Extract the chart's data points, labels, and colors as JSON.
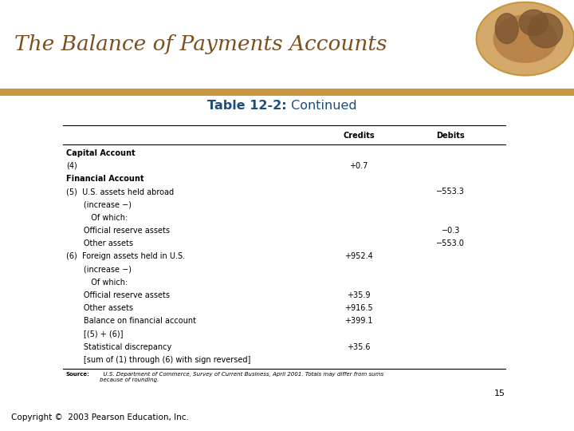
{
  "title": "The Balance of Payments Accounts",
  "subtitle_bold": "Table 12-2:",
  "subtitle_normal": " Continued",
  "header_credits": "Credits",
  "header_debits": "Debits",
  "bg_color": "#FFFFFF",
  "header_bar_color": "#C8963E",
  "title_color": "#7B4F1E",
  "subtitle_color": "#1F4E79",
  "page_number": "15",
  "copyright": "Copyright ©  2003 Pearson Education, Inc.",
  "source_bold": "Source:",
  "source_rest": "  U.S. Department of Commerce, Survey of Current Business, April 2001. Totals may differ from sums\nbecause of rounding.",
  "rows": [
    {
      "label": "Capital Account",
      "indent": 0,
      "credits": "",
      "debits": "",
      "bold": true
    },
    {
      "label": "(4)",
      "indent": 0,
      "credits": "+0.7",
      "debits": "",
      "bold": false
    },
    {
      "label": "Financial Account",
      "indent": 0,
      "credits": "",
      "debits": "",
      "bold": true
    },
    {
      "label": "(5)  U.S. assets held abroad",
      "indent": 0,
      "credits": "",
      "debits": "−553.3",
      "bold": false
    },
    {
      "label": "       (increase −)",
      "indent": 1,
      "credits": "",
      "debits": "",
      "bold": false
    },
    {
      "label": "          Of which:",
      "indent": 2,
      "credits": "",
      "debits": "",
      "bold": false
    },
    {
      "label": "       Official reserve assets",
      "indent": 1,
      "credits": "",
      "debits": "−0.3",
      "bold": false
    },
    {
      "label": "       Other assets",
      "indent": 1,
      "credits": "",
      "debits": "−553.0",
      "bold": false
    },
    {
      "label": "(6)  Foreign assets held in U.S.",
      "indent": 0,
      "credits": "+952.4",
      "debits": "",
      "bold": false
    },
    {
      "label": "       (increase −)",
      "indent": 1,
      "credits": "",
      "debits": "",
      "bold": false
    },
    {
      "label": "          Of which:",
      "indent": 2,
      "credits": "",
      "debits": "",
      "bold": false
    },
    {
      "label": "       Official reserve assets",
      "indent": 1,
      "credits": "+35.9",
      "debits": "",
      "bold": false
    },
    {
      "label": "       Other assets",
      "indent": 1,
      "credits": "+916.5",
      "debits": "",
      "bold": false
    },
    {
      "label": "       Balance on financial account",
      "indent": 1,
      "credits": "+399.1",
      "debits": "",
      "bold": false
    },
    {
      "label": "       [(5) + (6)]",
      "indent": 1,
      "credits": "",
      "debits": "",
      "bold": false
    },
    {
      "label": "       Statistical discrepancy",
      "indent": 1,
      "credits": "+35.6",
      "debits": "",
      "bold": false
    },
    {
      "label": "       [sum of (1) through (6) with sign reversed]",
      "indent": 1,
      "credits": "",
      "debits": "",
      "bold": false
    }
  ]
}
